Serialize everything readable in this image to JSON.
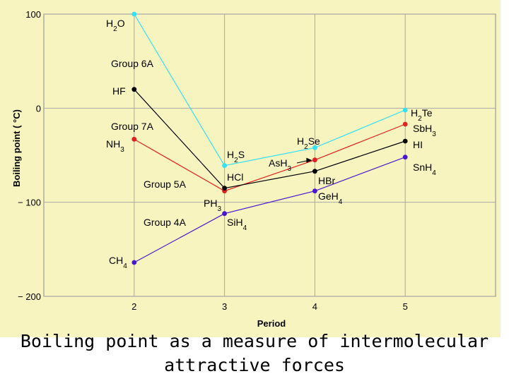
{
  "chart_data": {
    "type": "line",
    "title": "",
    "xlabel": "Period",
    "ylabel": "Boiling point ( °C)",
    "categories": [
      2,
      3,
      4,
      5
    ],
    "xlim": [
      1,
      6
    ],
    "ylim": [
      -200,
      100
    ],
    "yticks": [
      100,
      0,
      -100,
      -200
    ],
    "ytick_labels": [
      "100",
      "0",
      "− 100",
      "− 200"
    ],
    "grid": true,
    "series": [
      {
        "name": "Group 6A",
        "color": "#33e0f5",
        "values": [
          100,
          -61,
          -42,
          -2
        ],
        "compounds": [
          "H2O",
          "H2S",
          "H2Se",
          "H2Te"
        ]
      },
      {
        "name": "Group 7A",
        "color": "#000000",
        "values": [
          20,
          -85,
          -67,
          -35
        ],
        "compounds": [
          "HF",
          "HCl",
          "HBr",
          "HI"
        ]
      },
      {
        "name": "Group 5A",
        "color": "#e32020",
        "values": [
          -33,
          -88,
          -55,
          -17
        ],
        "compounds": [
          "NH3",
          "PH3",
          "AsH3",
          "SbH3"
        ]
      },
      {
        "name": "Group 4A",
        "color": "#4818d0",
        "values": [
          -164,
          -112,
          -88,
          -52
        ],
        "compounds": [
          "CH4",
          "SiH4",
          "GeH4",
          "SnH4"
        ]
      }
    ]
  },
  "caption": {
    "line1": "Boiling point as a measure of intermolecular",
    "line2": "attractive forces"
  }
}
